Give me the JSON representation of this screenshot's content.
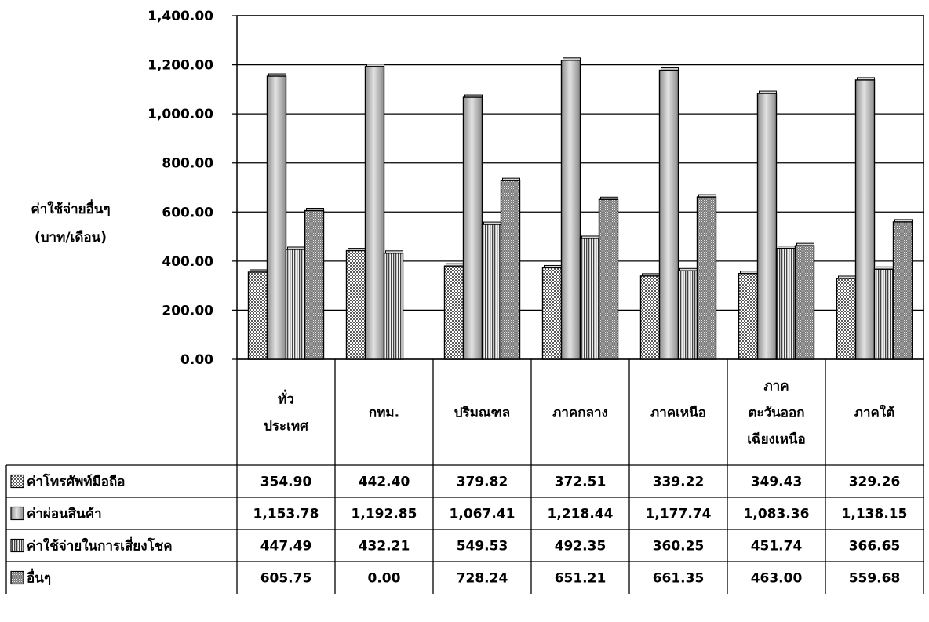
{
  "chart_data": {
    "type": "bar",
    "ylabel": [
      "ค่าใช้จ่ายอื่นๆ",
      "(บาท/เดือน)"
    ],
    "ylim": [
      0,
      1400
    ],
    "yticks": [
      "0.00",
      "200.00",
      "400.00",
      "600.00",
      "800.00",
      "1,000.00",
      "1,200.00",
      "1,400.00"
    ],
    "ytick_values": [
      0,
      200,
      400,
      600,
      800,
      1000,
      1200,
      1400
    ],
    "grid": true,
    "legend": "data-table",
    "categories": [
      [
        "ทั่ว",
        "ประเทศ"
      ],
      [
        "กทม."
      ],
      [
        "ปริมณฑล"
      ],
      [
        "ภาคกลาง"
      ],
      [
        "ภาคเหนือ"
      ],
      [
        "ภาค",
        "ตะวันออก",
        "เฉียงเหนือ"
      ],
      [
        "ภาคใต้"
      ]
    ],
    "series": [
      {
        "name": "ค่าโทรศัพท์มือถือ",
        "pattern": "check",
        "values": [
          354.9,
          442.4,
          379.82,
          372.51,
          339.22,
          349.43,
          329.26
        ],
        "labels": [
          "354.90",
          "442.40",
          "379.82",
          "372.51",
          "339.22",
          "349.43",
          "329.26"
        ]
      },
      {
        "name": "ค่าผ่อนสินค้า",
        "pattern": "gradient",
        "values": [
          1153.78,
          1192.85,
          1067.41,
          1218.44,
          1177.74,
          1083.36,
          1138.15
        ],
        "labels": [
          "1,153.78",
          "1,192.85",
          "1,067.41",
          "1,218.44",
          "1,177.74",
          "1,083.36",
          "1,138.15"
        ]
      },
      {
        "name": "ค่าใช้จ่ายในการเสี่ยงโชค",
        "pattern": "vertical",
        "values": [
          447.49,
          432.21,
          549.53,
          492.35,
          360.25,
          451.74,
          366.65
        ],
        "labels": [
          "447.49",
          "432.21",
          "549.53",
          "492.35",
          "360.25",
          "451.74",
          "366.65"
        ]
      },
      {
        "name": "อื่นๆ",
        "pattern": "dense",
        "values": [
          605.75,
          0.0,
          728.24,
          651.21,
          661.35,
          463.0,
          559.68
        ],
        "labels": [
          "605.75",
          "0.00",
          "728.24",
          "651.21",
          "661.35",
          "463.00",
          "559.68"
        ]
      }
    ]
  }
}
